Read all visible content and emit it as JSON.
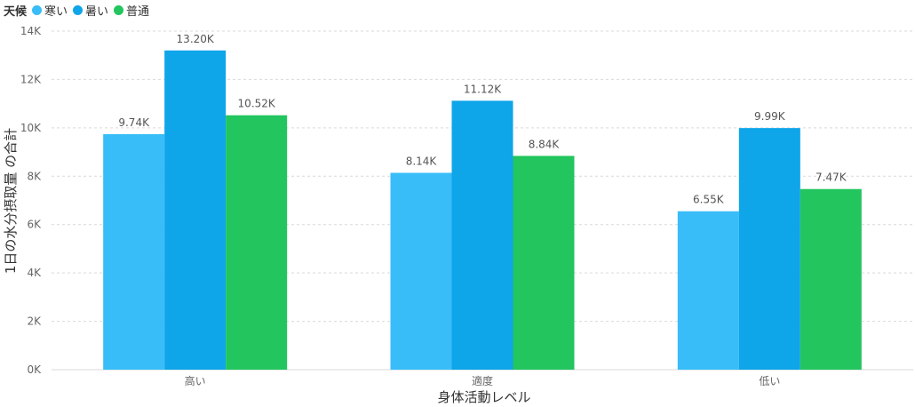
{
  "legend": {
    "title": "天候",
    "items": [
      {
        "label": "寒い",
        "color": "#38bdf8"
      },
      {
        "label": "暑い",
        "color": "#0ea5e9"
      },
      {
        "label": "普通",
        "color": "#22c55e"
      }
    ]
  },
  "chart_data": {
    "type": "bar",
    "categories": [
      "高い",
      "適度",
      "低い"
    ],
    "series": [
      {
        "name": "寒い",
        "color": "#38bdf8",
        "values": [
          9740,
          8140,
          6550
        ],
        "labels": [
          "9.74K",
          "8.14K",
          "6.55K"
        ]
      },
      {
        "name": "暑い",
        "color": "#0ea5e9",
        "values": [
          13200,
          11120,
          9990
        ],
        "labels": [
          "13.20K",
          "11.12K",
          "9.99K"
        ]
      },
      {
        "name": "普通",
        "color": "#22c55e",
        "values": [
          10520,
          8840,
          7470
        ],
        "labels": [
          "10.52K",
          "8.84K",
          "7.47K"
        ]
      }
    ],
    "xlabel": "身体活動レベル",
    "ylabel": "1日の水分摂取量 の合計",
    "ylim": [
      0,
      14000
    ],
    "yticks": [
      0,
      2000,
      4000,
      6000,
      8000,
      10000,
      12000,
      14000
    ],
    "ytick_labels": [
      "0K",
      "2K",
      "4K",
      "6K",
      "8K",
      "10K",
      "12K",
      "14K"
    ],
    "grid": true,
    "legend_position": "top-left"
  }
}
